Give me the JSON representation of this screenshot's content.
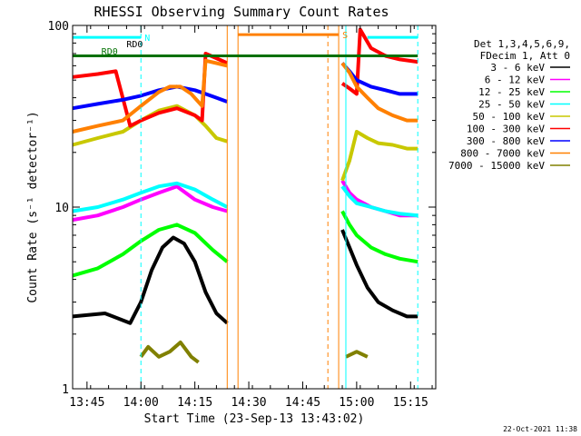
{
  "chart_data": {
    "type": "line",
    "title": "RHESSI Observing Summary Count Rates",
    "xlabel": "Start Time (23-Sep-13 13:43:02)",
    "ylabel": "Count Rate (s⁻¹ detector⁻¹)",
    "footer": "22-Oct-2021 11:38",
    "xlim": [
      "13:41",
      "15:22"
    ],
    "ylim": [
      1,
      100
    ],
    "yscale": "log",
    "x_ticks": [
      "13:45",
      "14:00",
      "14:15",
      "14:30",
      "14:45",
      "15:00",
      "15:15"
    ],
    "y_ticks": [
      "1",
      "10",
      "100"
    ],
    "legend_header": [
      "Det 1,3,4,5,6,9,",
      "FDecim 1, Att 0"
    ],
    "legend_placement": "right",
    "series": [
      {
        "name": "3 - 6 keV",
        "color": "#000000",
        "segments": [
          [
            [
              "13:41",
              2.5
            ],
            [
              "13:50",
              2.6
            ],
            [
              "13:57",
              2.3
            ],
            [
              "14:00",
              3.0
            ],
            [
              "14:03",
              4.5
            ],
            [
              "14:06",
              6.0
            ],
            [
              "14:09",
              6.8
            ],
            [
              "14:12",
              6.3
            ],
            [
              "14:15",
              5.0
            ],
            [
              "14:18",
              3.4
            ],
            [
              "14:21",
              2.6
            ],
            [
              "14:24",
              2.3
            ]
          ],
          [
            [
              "14:56",
              7.5
            ],
            [
              "14:58",
              6.0
            ],
            [
              "15:00",
              4.8
            ],
            [
              "15:03",
              3.6
            ],
            [
              "15:06",
              3.0
            ],
            [
              "15:10",
              2.7
            ],
            [
              "15:14",
              2.5
            ],
            [
              "15:17",
              2.5
            ]
          ]
        ]
      },
      {
        "name": "6 - 12 keV",
        "color": "#ff00ff",
        "segments": [
          [
            [
              "13:41",
              8.5
            ],
            [
              "13:48",
              9.0
            ],
            [
              "13:55",
              10
            ],
            [
              "14:00",
              11
            ],
            [
              "14:05",
              12
            ],
            [
              "14:10",
              13
            ],
            [
              "14:15",
              11
            ],
            [
              "14:20",
              10
            ],
            [
              "14:24",
              9.5
            ]
          ],
          [
            [
              "14:56",
              14
            ],
            [
              "14:58",
              12
            ],
            [
              "15:00",
              11
            ],
            [
              "15:04",
              10
            ],
            [
              "15:08",
              9.5
            ],
            [
              "15:12",
              9.0
            ],
            [
              "15:17",
              9.0
            ]
          ]
        ]
      },
      {
        "name": "12 - 25 keV",
        "color": "#00ff00",
        "segments": [
          [
            [
              "13:41",
              4.2
            ],
            [
              "13:48",
              4.6
            ],
            [
              "13:55",
              5.5
            ],
            [
              "14:00",
              6.5
            ],
            [
              "14:05",
              7.5
            ],
            [
              "14:10",
              8.0
            ],
            [
              "14:15",
              7.2
            ],
            [
              "14:20",
              5.8
            ],
            [
              "14:24",
              5.0
            ]
          ],
          [
            [
              "14:56",
              9.5
            ],
            [
              "14:58",
              8.0
            ],
            [
              "15:00",
              7.0
            ],
            [
              "15:04",
              6.0
            ],
            [
              "15:08",
              5.5
            ],
            [
              "15:12",
              5.2
            ],
            [
              "15:17",
              5.0
            ]
          ]
        ]
      },
      {
        "name": "25 - 50 keV",
        "color": "#00ffff",
        "segments": [
          [
            [
              "13:41",
              9.5
            ],
            [
              "13:48",
              10
            ],
            [
              "13:55",
              11
            ],
            [
              "14:00",
              12
            ],
            [
              "14:05",
              13
            ],
            [
              "14:10",
              13.5
            ],
            [
              "14:15",
              12.5
            ],
            [
              "14:20",
              11
            ],
            [
              "14:24",
              10
            ]
          ],
          [
            [
              "14:56",
              13
            ],
            [
              "14:58",
              11.5
            ],
            [
              "15:00",
              10.5
            ],
            [
              "15:04",
              10
            ],
            [
              "15:08",
              9.5
            ],
            [
              "15:12",
              9.2
            ],
            [
              "15:17",
              9.0
            ]
          ]
        ]
      },
      {
        "name": "50 - 100 keV",
        "color": "#c8c800",
        "segments": [
          [
            [
              "13:41",
              22
            ],
            [
              "13:48",
              24
            ],
            [
              "13:55",
              26
            ],
            [
              "14:00",
              30
            ],
            [
              "14:05",
              34
            ],
            [
              "14:10",
              36
            ],
            [
              "14:15",
              32
            ],
            [
              "14:18",
              28
            ],
            [
              "14:21",
              24
            ],
            [
              "14:24",
              23
            ]
          ],
          [
            [
              "14:56",
              14
            ],
            [
              "14:58",
              18
            ],
            [
              "15:00",
              26
            ],
            [
              "15:03",
              24
            ],
            [
              "15:06",
              22.5
            ],
            [
              "15:10",
              22
            ],
            [
              "15:14",
              21
            ],
            [
              "15:17",
              21
            ]
          ]
        ]
      },
      {
        "name": "100 - 300 keV",
        "color": "#ff0000",
        "segments": [
          [
            [
              "13:41",
              52
            ],
            [
              "13:48",
              54
            ],
            [
              "13:53",
              56
            ],
            [
              "13:57",
              28
            ],
            [
              "14:00",
              30
            ],
            [
              "14:05",
              33
            ],
            [
              "14:10",
              35
            ],
            [
              "14:15",
              32
            ],
            [
              "14:17",
              30
            ],
            [
              "14:18",
              70
            ],
            [
              "14:21",
              66
            ],
            [
              "14:24",
              62
            ]
          ],
          [
            [
              "14:56",
              48
            ],
            [
              "14:58",
              45
            ],
            [
              "15:00",
              42
            ],
            [
              "15:01",
              95
            ],
            [
              "15:04",
              75
            ],
            [
              "15:08",
              68
            ],
            [
              "15:12",
              65
            ],
            [
              "15:17",
              63
            ]
          ]
        ]
      },
      {
        "name": "300 - 800 keV",
        "color": "#0000ff",
        "segments": [
          [
            [
              "13:41",
              35
            ],
            [
              "13:48",
              37
            ],
            [
              "13:55",
              39
            ],
            [
              "14:00",
              41
            ],
            [
              "14:05",
              44
            ],
            [
              "14:10",
              46
            ],
            [
              "14:15",
              44
            ],
            [
              "14:18",
              42
            ],
            [
              "14:21",
              40
            ],
            [
              "14:24",
              38
            ]
          ],
          [
            [
              "14:56",
              62
            ],
            [
              "14:58",
              56
            ],
            [
              "15:00",
              50
            ],
            [
              "15:04",
              46
            ],
            [
              "15:08",
              44
            ],
            [
              "15:12",
              42
            ],
            [
              "15:17",
              42
            ]
          ]
        ]
      },
      {
        "name": "800 - 7000 keV",
        "color": "#ff8000",
        "segments": [
          [
            [
              "13:41",
              26
            ],
            [
              "13:48",
              28
            ],
            [
              "13:55",
              30
            ],
            [
              "14:00",
              36
            ],
            [
              "14:05",
              43
            ],
            [
              "14:08",
              46
            ],
            [
              "14:11",
              46
            ],
            [
              "14:14",
              42
            ],
            [
              "14:17",
              36
            ],
            [
              "14:18",
              64
            ],
            [
              "14:21",
              62
            ],
            [
              "14:24",
              60
            ]
          ],
          [
            [
              "14:56",
              62
            ],
            [
              "14:58",
              55
            ],
            [
              "15:00",
              46
            ],
            [
              "15:03",
              40
            ],
            [
              "15:06",
              35
            ],
            [
              "15:10",
              32
            ],
            [
              "15:14",
              30
            ],
            [
              "15:17",
              30
            ]
          ]
        ]
      },
      {
        "name": "7000 - 15000 keV",
        "color": "#808000",
        "segments": [
          [
            [
              "14:00",
              1.5
            ],
            [
              "14:02",
              1.7
            ],
            [
              "14:05",
              1.5
            ],
            [
              "14:08",
              1.6
            ],
            [
              "14:11",
              1.8
            ],
            [
              "14:14",
              1.5
            ],
            [
              "14:16",
              1.4
            ]
          ],
          [
            [
              "14:57",
              1.5
            ],
            [
              "15:00",
              1.6
            ],
            [
              "15:03",
              1.5
            ]
          ]
        ]
      }
    ],
    "annotations": {
      "vertical_lines": [
        {
          "x": "14:00",
          "color": "#00ffff",
          "dash": true
        },
        {
          "x": "15:17",
          "color": "#00ffff",
          "dash": true
        },
        {
          "x": "14:57",
          "color": "#00ffff",
          "dash": false
        },
        {
          "x": "14:27",
          "color": "#ff8000",
          "dash": false
        },
        {
          "x": "14:52",
          "color": "#ff8000",
          "dash": true
        },
        {
          "x": "14:55",
          "color": "#ff8000",
          "dash": false
        },
        {
          "x": "14:24",
          "color": "#ff8000",
          "dash": false
        }
      ],
      "bars": [
        {
          "label": "N",
          "x0": "13:41",
          "x1": "14:00",
          "y": 86,
          "color": "#00ffff"
        },
        {
          "label": "",
          "x0": "15:03",
          "x1": "15:17",
          "y": 86,
          "color": "#00ffff"
        },
        {
          "label": "S",
          "x0": "14:27",
          "x1": "14:55",
          "y": 89,
          "color": "#ff8000"
        },
        {
          "label": "",
          "x0": "13:41",
          "x1": "15:17",
          "y": 68,
          "color": "#007000"
        }
      ],
      "labels": [
        {
          "text": "RD0",
          "x": "13:56",
          "y": 76,
          "color": "#000000"
        },
        {
          "text": "RD0",
          "x": "13:49",
          "y": 69,
          "color": "#007000"
        }
      ]
    }
  }
}
